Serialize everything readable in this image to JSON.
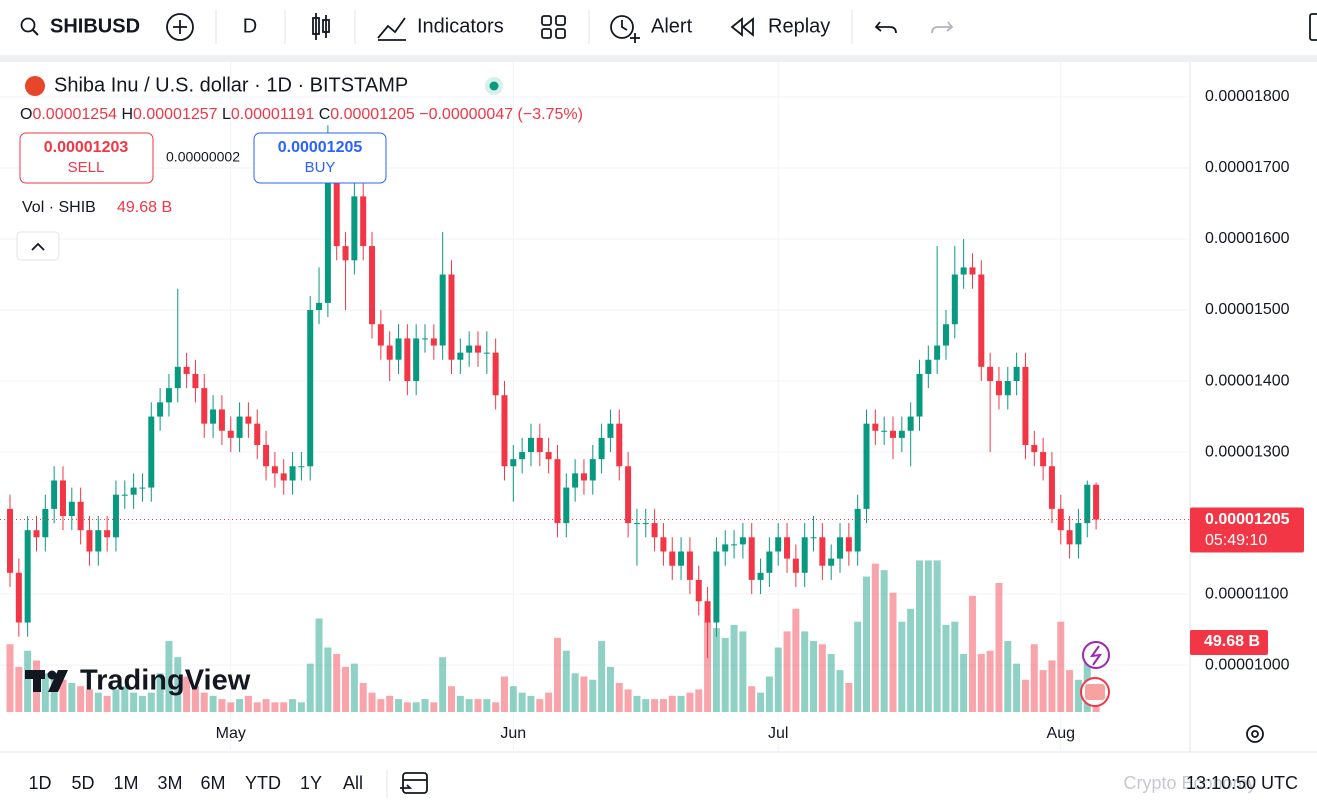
{
  "toolbar": {
    "symbol": "SHIBUSD",
    "interval": "D",
    "indicators": "Indicators",
    "alert": "Alert",
    "replay": "Replay"
  },
  "legend": {
    "title": "Shiba Inu / U.S. dollar · 1D · BITSTAMP",
    "ohlc": [
      {
        "label": "O",
        "value": "0.00001254"
      },
      {
        "label": "H",
        "value": "0.00001257"
      },
      {
        "label": "L",
        "value": "0.00001191"
      },
      {
        "label": "C",
        "value": "0.00001205"
      }
    ],
    "change": "−0.00000047 (−3.75%)",
    "sell_price": "0.00001203",
    "sell": "SELL",
    "spread": "0.00000002",
    "buy_price": "0.00001205",
    "buy": "BUY",
    "volume_label": "Vol · SHIB",
    "volume_value": "49.68 B"
  },
  "chart_data": {
    "type": "candlestick",
    "categories": [
      null,
      null,
      null,
      null,
      null,
      null,
      null,
      null,
      null,
      null,
      null,
      null,
      null,
      null,
      null,
      null,
      null,
      null,
      null,
      null,
      null,
      null,
      null,
      null,
      null,
      "May",
      null,
      null,
      null,
      null,
      null,
      null,
      null,
      null,
      null,
      null,
      null,
      null,
      null,
      null,
      null,
      null,
      null,
      null,
      null,
      null,
      null,
      null,
      null,
      null,
      null,
      null,
      null,
      null,
      null,
      null,
      null,
      "Jun",
      null,
      null,
      null,
      null,
      null,
      null,
      null,
      null,
      null,
      null,
      null,
      null,
      null,
      null,
      null,
      null,
      null,
      null,
      null,
      null,
      null,
      null,
      null,
      null,
      null,
      null,
      null,
      null,
      null,
      "Jul",
      null,
      null,
      null,
      null,
      null,
      null,
      null,
      null,
      null,
      null,
      null,
      null,
      null,
      null,
      null,
      null,
      null,
      null,
      null,
      null,
      null,
      null,
      null,
      null,
      null,
      null,
      null,
      null,
      null,
      null,
      null,
      "Aug",
      null,
      null,
      null,
      null
    ],
    "open": [
      1.22e-05,
      1.13e-05,
      1.06e-05,
      1.19e-05,
      1.18e-05,
      1.22e-05,
      1.26e-05,
      1.21e-05,
      1.23e-05,
      1.19e-05,
      1.16e-05,
      1.19e-05,
      1.18e-05,
      1.24e-05,
      1.24e-05,
      1.25e-05,
      1.25e-05,
      1.35e-05,
      1.37e-05,
      1.39e-05,
      1.42e-05,
      1.41e-05,
      1.39e-05,
      1.34e-05,
      1.36e-05,
      1.33e-05,
      1.32e-05,
      1.35e-05,
      1.34e-05,
      1.31e-05,
      1.28e-05,
      1.27e-05,
      1.26e-05,
      1.28e-05,
      1.28e-05,
      1.5e-05,
      1.51e-05,
      1.68e-05,
      1.59e-05,
      1.57e-05,
      1.66e-05,
      1.59e-05,
      1.48e-05,
      1.45e-05,
      1.43e-05,
      1.46e-05,
      1.4e-05,
      1.46e-05,
      1.46e-05,
      1.45e-05,
      1.55e-05,
      1.43e-05,
      1.44e-05,
      1.45e-05,
      1.44e-05,
      1.44e-05,
      1.38e-05,
      1.28e-05,
      1.29e-05,
      1.3e-05,
      1.32e-05,
      1.3e-05,
      1.29e-05,
      1.2e-05,
      1.25e-05,
      1.27e-05,
      1.26e-05,
      1.29e-05,
      1.32e-05,
      1.34e-05,
      1.28e-05,
      1.2e-05,
      1.2e-05,
      1.2e-05,
      1.18e-05,
      1.16e-05,
      1.14e-05,
      1.16e-05,
      1.12e-05,
      1.09e-05,
      1.06e-05,
      1.16e-05,
      1.17e-05,
      1.17e-05,
      1.18e-05,
      1.12e-05,
      1.13e-05,
      1.16e-05,
      1.18e-05,
      1.15e-05,
      1.13e-05,
      1.18e-05,
      1.18e-05,
      1.14e-05,
      1.15e-05,
      1.18e-05,
      1.16e-05,
      1.22e-05,
      1.34e-05,
      1.33e-05,
      1.33e-05,
      1.32e-05,
      1.33e-05,
      1.35e-05,
      1.41e-05,
      1.43e-05,
      1.45e-05,
      1.48e-05,
      1.55e-05,
      1.56e-05,
      1.55e-05,
      1.42e-05,
      1.4e-05,
      1.38e-05,
      1.4e-05,
      1.42e-05,
      1.31e-05,
      1.3e-05,
      1.28e-05,
      1.22e-05,
      1.19e-05,
      1.17e-05,
      1.2e-05,
      1.254e-05
    ],
    "high": [
      1.24e-05,
      1.15e-05,
      1.21e-05,
      1.21e-05,
      1.24e-05,
      1.28e-05,
      1.28e-05,
      1.25e-05,
      1.25e-05,
      1.21e-05,
      1.21e-05,
      1.21e-05,
      1.26e-05,
      1.26e-05,
      1.27e-05,
      1.27e-05,
      1.37e-05,
      1.39e-05,
      1.41e-05,
      1.53e-05,
      1.44e-05,
      1.43e-05,
      1.41e-05,
      1.38e-05,
      1.38e-05,
      1.35e-05,
      1.37e-05,
      1.37e-05,
      1.36e-05,
      1.33e-05,
      1.3e-05,
      1.29e-05,
      1.3e-05,
      1.3e-05,
      1.52e-05,
      1.56e-05,
      1.76e-05,
      1.71e-05,
      1.61e-05,
      1.68e-05,
      1.68e-05,
      1.61e-05,
      1.5e-05,
      1.47e-05,
      1.48e-05,
      1.48e-05,
      1.48e-05,
      1.48e-05,
      1.48e-05,
      1.61e-05,
      1.57e-05,
      1.46e-05,
      1.47e-05,
      1.47e-05,
      1.47e-05,
      1.46e-05,
      1.4e-05,
      1.31e-05,
      1.32e-05,
      1.34e-05,
      1.34e-05,
      1.32e-05,
      1.31e-05,
      1.27e-05,
      1.29e-05,
      1.29e-05,
      1.31e-05,
      1.34e-05,
      1.36e-05,
      1.36e-05,
      1.3e-05,
      1.22e-05,
      1.22e-05,
      1.22e-05,
      1.2e-05,
      1.18e-05,
      1.18e-05,
      1.18e-05,
      1.14e-05,
      1.11e-05,
      1.18e-05,
      1.19e-05,
      1.19e-05,
      1.2e-05,
      1.2e-05,
      1.15e-05,
      1.18e-05,
      1.2e-05,
      1.2e-05,
      1.17e-05,
      1.2e-05,
      1.21e-05,
      1.2e-05,
      1.17e-05,
      1.2e-05,
      1.2e-05,
      1.24e-05,
      1.36e-05,
      1.36e-05,
      1.35e-05,
      1.35e-05,
      1.35e-05,
      1.37e-05,
      1.43e-05,
      1.45e-05,
      1.59e-05,
      1.5e-05,
      1.59e-05,
      1.6e-05,
      1.58e-05,
      1.57e-05,
      1.44e-05,
      1.42e-05,
      1.42e-05,
      1.44e-05,
      1.44e-05,
      1.33e-05,
      1.32e-05,
      1.3e-05,
      1.24e-05,
      1.21e-05,
      1.22e-05,
      1.26e-05,
      1.257e-05
    ],
    "low": [
      1.11e-05,
      1.04e-05,
      1.04e-05,
      1.16e-05,
      1.16e-05,
      1.2e-05,
      1.19e-05,
      1.19e-05,
      1.17e-05,
      1.14e-05,
      1.14e-05,
      1.16e-05,
      1.16e-05,
      1.22e-05,
      1.22e-05,
      1.23e-05,
      1.23e-05,
      1.33e-05,
      1.35e-05,
      1.37e-05,
      1.39e-05,
      1.37e-05,
      1.32e-05,
      1.32e-05,
      1.31e-05,
      1.3e-05,
      1.3e-05,
      1.32e-05,
      1.29e-05,
      1.26e-05,
      1.25e-05,
      1.24e-05,
      1.24e-05,
      1.26e-05,
      1.26e-05,
      1.48e-05,
      1.49e-05,
      1.57e-05,
      1.5e-05,
      1.55e-05,
      1.57e-05,
      1.46e-05,
      1.43e-05,
      1.4e-05,
      1.41e-05,
      1.38e-05,
      1.38e-05,
      1.44e-05,
      1.43e-05,
      1.43e-05,
      1.41e-05,
      1.41e-05,
      1.42e-05,
      1.42e-05,
      1.41e-05,
      1.36e-05,
      1.26e-05,
      1.23e-05,
      1.27e-05,
      1.28e-05,
      1.28e-05,
      1.27e-05,
      1.18e-05,
      1.18e-05,
      1.23e-05,
      1.24e-05,
      1.24e-05,
      1.27e-05,
      1.3e-05,
      1.26e-05,
      1.18e-05,
      1.14e-05,
      1.18e-05,
      1.16e-05,
      1.14e-05,
      1.12e-05,
      1.12e-05,
      1.1e-05,
      1.07e-05,
      1.01e-05,
      1.04e-05,
      1.14e-05,
      1.15e-05,
      1.15e-05,
      1.1e-05,
      1.1e-05,
      1.11e-05,
      1.14e-05,
      1.13e-05,
      1.11e-05,
      1.11e-05,
      1.16e-05,
      1.12e-05,
      1.12e-05,
      1.13e-05,
      1.14e-05,
      1.14e-05,
      1.2e-05,
      1.31e-05,
      1.31e-05,
      1.29e-05,
      1.3e-05,
      1.28e-05,
      1.33e-05,
      1.39e-05,
      1.41e-05,
      1.43e-05,
      1.46e-05,
      1.53e-05,
      1.53e-05,
      1.4e-05,
      1.3e-05,
      1.36e-05,
      1.36e-05,
      1.38e-05,
      1.29e-05,
      1.28e-05,
      1.26e-05,
      1.2e-05,
      1.17e-05,
      1.15e-05,
      1.15e-05,
      1.18e-05,
      1.191e-05
    ],
    "close": [
      1.13e-05,
      1.06e-05,
      1.19e-05,
      1.18e-05,
      1.22e-05,
      1.26e-05,
      1.21e-05,
      1.23e-05,
      1.19e-05,
      1.16e-05,
      1.19e-05,
      1.18e-05,
      1.24e-05,
      1.24e-05,
      1.25e-05,
      1.25e-05,
      1.35e-05,
      1.37e-05,
      1.39e-05,
      1.42e-05,
      1.41e-05,
      1.39e-05,
      1.34e-05,
      1.36e-05,
      1.33e-05,
      1.32e-05,
      1.35e-05,
      1.34e-05,
      1.31e-05,
      1.28e-05,
      1.27e-05,
      1.26e-05,
      1.28e-05,
      1.28e-05,
      1.5e-05,
      1.51e-05,
      1.68e-05,
      1.59e-05,
      1.57e-05,
      1.66e-05,
      1.59e-05,
      1.48e-05,
      1.45e-05,
      1.43e-05,
      1.46e-05,
      1.4e-05,
      1.46e-05,
      1.46e-05,
      1.45e-05,
      1.55e-05,
      1.43e-05,
      1.44e-05,
      1.45e-05,
      1.44e-05,
      1.44e-05,
      1.38e-05,
      1.28e-05,
      1.29e-05,
      1.3e-05,
      1.32e-05,
      1.3e-05,
      1.29e-05,
      1.2e-05,
      1.25e-05,
      1.27e-05,
      1.26e-05,
      1.29e-05,
      1.32e-05,
      1.34e-05,
      1.28e-05,
      1.2e-05,
      1.2e-05,
      1.2e-05,
      1.18e-05,
      1.16e-05,
      1.14e-05,
      1.16e-05,
      1.12e-05,
      1.09e-05,
      1.06e-05,
      1.16e-05,
      1.17e-05,
      1.17e-05,
      1.18e-05,
      1.12e-05,
      1.13e-05,
      1.16e-05,
      1.18e-05,
      1.15e-05,
      1.13e-05,
      1.18e-05,
      1.18e-05,
      1.14e-05,
      1.15e-05,
      1.18e-05,
      1.16e-05,
      1.22e-05,
      1.34e-05,
      1.33e-05,
      1.33e-05,
      1.32e-05,
      1.33e-05,
      1.35e-05,
      1.41e-05,
      1.43e-05,
      1.45e-05,
      1.48e-05,
      1.55e-05,
      1.56e-05,
      1.55e-05,
      1.42e-05,
      1.4e-05,
      1.38e-05,
      1.4e-05,
      1.42e-05,
      1.31e-05,
      1.3e-05,
      1.28e-05,
      1.22e-05,
      1.19e-05,
      1.17e-05,
      1.2e-05,
      1.254e-05,
      1.205e-05
    ],
    "volume": [
      105,
      70,
      95,
      80,
      60,
      55,
      50,
      45,
      40,
      35,
      30,
      25,
      35,
      40,
      30,
      25,
      30,
      60,
      110,
      85,
      55,
      40,
      30,
      25,
      20,
      15,
      20,
      25,
      15,
      20,
      15,
      15,
      20,
      15,
      75,
      145,
      100,
      90,
      70,
      75,
      45,
      30,
      20,
      25,
      20,
      15,
      15,
      20,
      15,
      85,
      40,
      25,
      20,
      20,
      20,
      15,
      55,
      40,
      30,
      25,
      20,
      30,
      115,
      95,
      60,
      55,
      50,
      110,
      70,
      45,
      35,
      25,
      20,
      20,
      20,
      25,
      25,
      30,
      35,
      140,
      130,
      115,
      135,
      125,
      40,
      30,
      55,
      100,
      125,
      160,
      125,
      110,
      105,
      90,
      65,
      45,
      140,
      210,
      230,
      220,
      185,
      140,
      160,
      235,
      235,
      235,
      135,
      140,
      90,
      180,
      90,
      95,
      200,
      110,
      75,
      50,
      105,
      65,
      80,
      140,
      65,
      50,
      80,
      49.68
    ],
    "up_color": "#089981",
    "down_color": "#f23645",
    "ylim": [
      9.34e-06,
      1.845e-05
    ],
    "yticks": [
      {
        "value": 1e-05,
        "label": "0.00001000"
      },
      {
        "value": 1.1e-05,
        "label": "0.00001100"
      },
      {
        "value": 1.2e-05,
        "label": "0.00001200"
      },
      {
        "value": 1.3e-05,
        "label": "0.00001300"
      },
      {
        "value": 1.4e-05,
        "label": "0.00001400"
      },
      {
        "value": 1.5e-05,
        "label": "0.00001500"
      },
      {
        "value": 1.6e-05,
        "label": "0.00001600"
      },
      {
        "value": 1.7e-05,
        "label": "0.00001700"
      },
      {
        "value": 1.8e-05,
        "label": "0.00001800"
      }
    ],
    "grid": true,
    "last_price_label": "0.00001205",
    "countdown": "05:49:10",
    "last_volume_label": "49.68 B"
  },
  "logo": "TradingView",
  "bottom_bar": {
    "ranges": [
      "1D",
      "5D",
      "1M",
      "3M",
      "6M",
      "YTD",
      "1Y",
      "All"
    ],
    "watermark": "Crypto Economy",
    "time": "13:10:50 UTC"
  }
}
